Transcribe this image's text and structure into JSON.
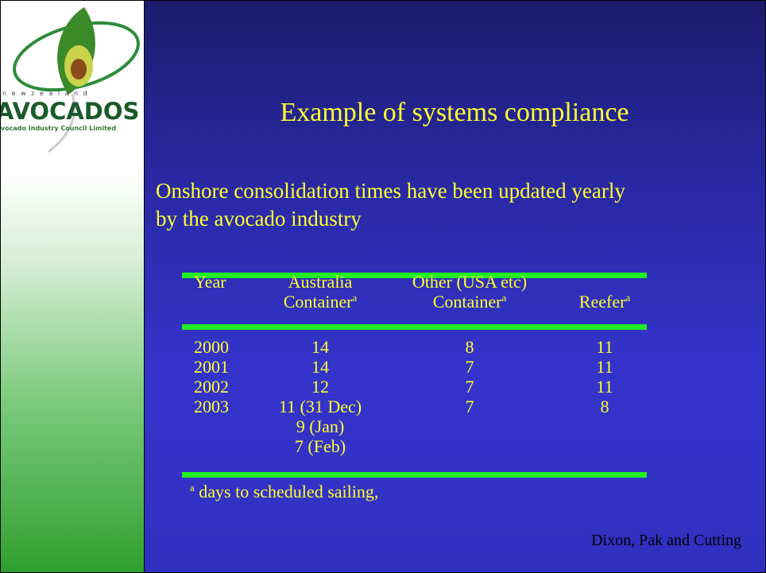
{
  "logo": {
    "country": "n e w z e a l a n d",
    "name": "AVOCADOS",
    "tagline": "Avocado Industry Council Limited"
  },
  "title": "Example of systems compliance",
  "body": [
    "Onshore consolidation times have been updated yearly",
    "by the avocado industry"
  ],
  "table": {
    "header": [
      {
        "lines": [
          "Year"
        ]
      },
      {
        "lines": [
          "Australia",
          "Container"
        ],
        "sup": "a"
      },
      {
        "lines": [
          "Other (USA etc)",
          "Container"
        ],
        "sup": "a"
      },
      {
        "lines": [
          "Reefer"
        ],
        "sup": "a"
      }
    ],
    "rows": [
      [
        [
          "2000"
        ],
        [
          "14"
        ],
        [
          "8"
        ],
        [
          "11"
        ]
      ],
      [
        [
          "2001"
        ],
        [
          "14"
        ],
        [
          "7"
        ],
        [
          "11"
        ]
      ],
      [
        [
          "2002"
        ],
        [
          "12"
        ],
        [
          "7"
        ],
        [
          "11"
        ]
      ],
      [
        [
          "2003"
        ],
        [
          "11 (31 Dec)",
          "9 (Jan)",
          "7 (Feb)"
        ],
        [
          "7"
        ],
        [
          "8"
        ]
      ]
    ]
  },
  "footnote": {
    "sup": "a",
    "text": "days to scheduled sailing,"
  },
  "author": "Dixon, Pak and Cutting"
}
